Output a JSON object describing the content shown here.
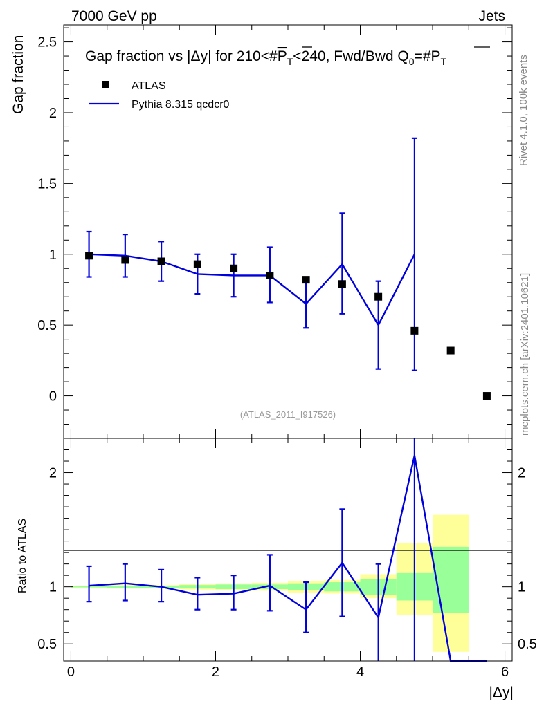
{
  "header": {
    "left": "7000 GeV pp",
    "right": "Jets"
  },
  "side_labels": {
    "top": "Rivet 4.1.0,  100k events",
    "bottom": "mcplots.cern.ch [arXiv:2401.10621]"
  },
  "colors": {
    "mc": "#0000dd",
    "data": "#000000",
    "band_inner": "#99ff99",
    "band_outer": "#ffff99"
  },
  "chart_data": [
    {
      "type": "line",
      "title": "Gap fraction vs |Δy| for 210<#P̅T<240, Fwd/Bwd Q0=#P̅T",
      "title_parts": {
        "a": "Gap fraction vs |",
        "b": "Δ",
        "c": "y| for 210<#",
        "d": "P",
        "e": "T",
        "f": "<240, Fwd/Bwd Q",
        "g": "0",
        "h": "=#",
        "i": "P",
        "j": "T"
      },
      "ylabel": "Gap fraction",
      "xlabel": "",
      "xlim": [
        -0.1,
        6.1
      ],
      "ylim": [
        -0.3,
        2.62
      ],
      "yticks": [
        0,
        0.5,
        1,
        1.5,
        2,
        2.5
      ],
      "ytick_labels": [
        "0",
        "0.5",
        "1",
        "1.5",
        "2",
        "2.5"
      ],
      "legend": {
        "position": "top-left",
        "data_label": "ATLAS",
        "mc_label": "Pythia 8.315 qcdcr0"
      },
      "annotation": "(ATLAS_2011_I917526)",
      "data_series": {
        "name": "ATLAS",
        "x": [
          0.25,
          0.75,
          1.25,
          1.75,
          2.25,
          2.75,
          3.25,
          3.75,
          4.25,
          4.75,
          5.25,
          5.75
        ],
        "y": [
          0.99,
          0.96,
          0.95,
          0.93,
          0.9,
          0.85,
          0.82,
          0.79,
          0.7,
          0.46,
          0.32,
          0.0
        ]
      },
      "mc_series": {
        "name": "Pythia 8.315 qcdcr0",
        "x": [
          0.25,
          0.75,
          1.25,
          1.75,
          2.25,
          2.75,
          3.25,
          3.75,
          4.25,
          4.75
        ],
        "y": [
          1.0,
          0.99,
          0.95,
          0.86,
          0.85,
          0.85,
          0.65,
          0.93,
          0.5,
          1.0
        ],
        "err_lo": [
          0.84,
          0.84,
          0.81,
          0.72,
          0.7,
          0.66,
          0.48,
          0.58,
          0.19,
          0.18
        ],
        "err_hi": [
          1.16,
          1.14,
          1.09,
          1.0,
          1.0,
          1.05,
          0.82,
          1.29,
          0.81,
          1.82
        ]
      }
    },
    {
      "type": "line",
      "title": "",
      "ylabel": "Ratio to ATLAS",
      "xlabel": "|Δy|",
      "xlabel_parts": {
        "a": "|",
        "b": "Δ",
        "c": "y|"
      },
      "xlim": [
        -0.1,
        6.1
      ],
      "ylim": [
        0.35,
        2.3
      ],
      "xticks": [
        0,
        2,
        4,
        6
      ],
      "xtick_labels": [
        "0",
        "2",
        "4",
        "6"
      ],
      "yticks": [
        0.5,
        1,
        2
      ],
      "ytick_labels": [
        "0.5",
        "1",
        "2"
      ],
      "bands": {
        "x_edges": [
          0,
          0.5,
          1,
          1.5,
          2,
          2.5,
          3,
          3.5,
          4,
          4.5,
          5,
          5.5
        ],
        "inner_lo": [
          0.995,
          0.99,
          0.99,
          0.985,
          0.98,
          0.98,
          0.97,
          0.96,
          0.93,
          0.88,
          0.77
        ],
        "inner_hi": [
          1.005,
          1.01,
          1.01,
          1.015,
          1.02,
          1.02,
          1.03,
          1.04,
          1.07,
          1.12,
          1.35
        ],
        "outer_lo": [
          0.99,
          0.985,
          0.985,
          0.975,
          0.97,
          0.965,
          0.95,
          0.94,
          0.9,
          0.75,
          0.43
        ],
        "outer_hi": [
          1.01,
          1.015,
          1.015,
          1.025,
          1.03,
          1.035,
          1.05,
          1.06,
          1.11,
          1.38,
          1.63
        ]
      },
      "mc_series": {
        "name": "Pythia 8.315 qcdcr0",
        "x": [
          0.25,
          0.75,
          1.25,
          1.75,
          2.25,
          2.75,
          3.25,
          3.75,
          4.25,
          4.75,
          5.25,
          5.75
        ],
        "y": [
          1.01,
          1.03,
          1.0,
          0.93,
          0.94,
          1.01,
          0.8,
          1.21,
          0.73,
          2.15,
          0.3,
          0.3
        ],
        "err_lo": [
          0.87,
          0.88,
          0.87,
          0.8,
          0.8,
          0.79,
          0.6,
          0.74,
          0.3,
          0.3,
          null,
          null
        ],
        "err_hi": [
          1.18,
          1.2,
          1.15,
          1.08,
          1.1,
          1.28,
          1.04,
          1.68,
          1.2,
          2.3,
          null,
          null
        ]
      }
    }
  ]
}
